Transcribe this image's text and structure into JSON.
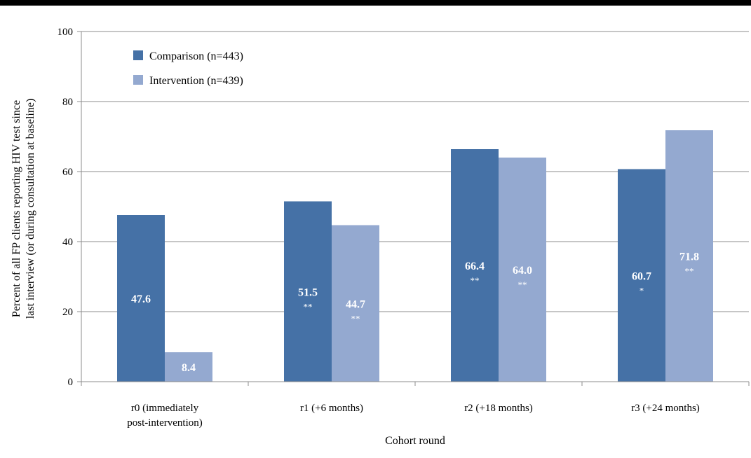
{
  "chart_data": {
    "type": "bar",
    "ylabel_lines": [
      "Percent of all FP clients reporting HIV test since",
      "last interview (or during consultation at baseline)"
    ],
    "xlabel": "Cohort round",
    "ylim": [
      0,
      100
    ],
    "yticks": [
      0,
      20,
      40,
      60,
      80,
      100
    ],
    "grid": true,
    "legend_position": "top-left",
    "categories": [
      [
        "r0 (immediately",
        "post-intervention)"
      ],
      [
        "r1 (+6 months)"
      ],
      [
        "r2 (+18 months)"
      ],
      [
        "r3 (+24 months)"
      ]
    ],
    "series": [
      {
        "name": "Comparison (n=443)",
        "color": "#4571a6",
        "label_color": "#ffffff",
        "values": [
          47.6,
          51.5,
          66.4,
          60.7
        ],
        "labels": [
          "47.6",
          "51.5",
          "66.4",
          "60.7"
        ],
        "significance": [
          "",
          "**",
          "**",
          "*"
        ]
      },
      {
        "name": "Intervention (n=439)",
        "color": "#94a9d0",
        "label_color": "#ffffff",
        "values": [
          8.4,
          44.7,
          64.0,
          71.8
        ],
        "labels": [
          "8.4",
          "44.7",
          "64.0",
          "71.8"
        ],
        "significance": [
          "",
          "**",
          "**",
          "**"
        ]
      }
    ]
  }
}
